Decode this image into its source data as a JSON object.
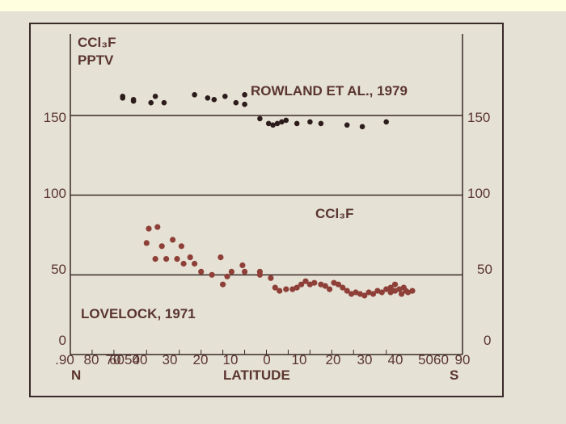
{
  "chart_data": {
    "type": "scatter",
    "ylabel_line1": "CCl₃F",
    "ylabel_line2": "PPTV",
    "xlabel": "LATITUDE",
    "x_start_label": "N",
    "x_end_label": "S",
    "ylim": [
      0,
      170
    ],
    "xlim": [
      -90,
      90
    ],
    "y_ticks": [
      "0",
      "50",
      "100",
      "150"
    ],
    "y_ticks_right": [
      "0",
      "50",
      "100",
      "150"
    ],
    "y_tick_values": [
      0,
      50,
      100,
      150
    ],
    "x_ticks": [
      ".90",
      "80",
      "70",
      "6050",
      "40",
      "30",
      "20",
      "10",
      "0",
      "10",
      "20",
      "30",
      "40",
      "5060",
      "90"
    ],
    "x_tick_values": [
      -90,
      -80,
      -70,
      -55,
      -40,
      -30,
      -20,
      -10,
      0,
      10,
      20,
      30,
      40,
      55,
      90
    ],
    "annotations": {
      "rowland": "ROWLAND ET AL., 1979",
      "lovelock": "LOVELOCK, 1971",
      "middle": "CCl₃F"
    },
    "gridlines_y": [
      50,
      100,
      150
    ],
    "colors": {
      "rowland": "#2c1d1c",
      "lovelock": "#8e4038",
      "frame": "#3a2a28",
      "background": "#e6e1d5",
      "slide": "#ffffe0"
    },
    "series": [
      {
        "name": "ROWLAND ET AL., 1979",
        "points": [
          [
            -66,
            162
          ],
          [
            -66,
            161
          ],
          [
            -61,
            160
          ],
          [
            -61,
            159
          ],
          [
            -53,
            158
          ],
          [
            -51,
            162
          ],
          [
            -47,
            158
          ],
          [
            -33,
            163
          ],
          [
            -27,
            161
          ],
          [
            -24,
            160
          ],
          [
            -19,
            162
          ],
          [
            -14,
            158
          ],
          [
            -10,
            163
          ],
          [
            -10,
            157
          ],
          [
            -3,
            148
          ],
          [
            1,
            145
          ],
          [
            3,
            144
          ],
          [
            5,
            145
          ],
          [
            7,
            146
          ],
          [
            9,
            147
          ],
          [
            14,
            145
          ],
          [
            20,
            146
          ],
          [
            25,
            145
          ],
          [
            37,
            144
          ],
          [
            44,
            143
          ],
          [
            55,
            146
          ]
        ]
      },
      {
        "name": "LOVELOCK, 1971",
        "points": [
          [
            -55,
            70
          ],
          [
            -54,
            79
          ],
          [
            -50,
            80
          ],
          [
            -51,
            60
          ],
          [
            -48,
            68
          ],
          [
            -46,
            60
          ],
          [
            -43,
            72
          ],
          [
            -41,
            60
          ],
          [
            -39,
            68
          ],
          [
            -38,
            57
          ],
          [
            -35,
            61
          ],
          [
            -33,
            57
          ],
          [
            -30,
            52
          ],
          [
            -25,
            50
          ],
          [
            -21,
            61
          ],
          [
            -20,
            44
          ],
          [
            -18,
            49
          ],
          [
            -16,
            52
          ],
          [
            -11,
            56
          ],
          [
            -10,
            52
          ],
          [
            -3,
            52
          ],
          [
            -3,
            50
          ],
          [
            2,
            48
          ],
          [
            4,
            42
          ],
          [
            6,
            40
          ],
          [
            9,
            41
          ],
          [
            12,
            41
          ],
          [
            14,
            42
          ],
          [
            16,
            44
          ],
          [
            18,
            46
          ],
          [
            20,
            44
          ],
          [
            22,
            45
          ],
          [
            25,
            44
          ],
          [
            27,
            43
          ],
          [
            29,
            41
          ],
          [
            31,
            45
          ],
          [
            33,
            44
          ],
          [
            35,
            42
          ],
          [
            37,
            40
          ],
          [
            39,
            38
          ],
          [
            41,
            39
          ],
          [
            43,
            38
          ],
          [
            45,
            37
          ],
          [
            47,
            39
          ],
          [
            49,
            38
          ],
          [
            51,
            40
          ],
          [
            53,
            39
          ],
          [
            55,
            41
          ],
          [
            57,
            42
          ],
          [
            57,
            39
          ],
          [
            59,
            44
          ],
          [
            59,
            40
          ],
          [
            61,
            41
          ],
          [
            62,
            38
          ],
          [
            63,
            42
          ],
          [
            64,
            40
          ],
          [
            65,
            39
          ],
          [
            67,
            40
          ]
        ]
      }
    ]
  }
}
